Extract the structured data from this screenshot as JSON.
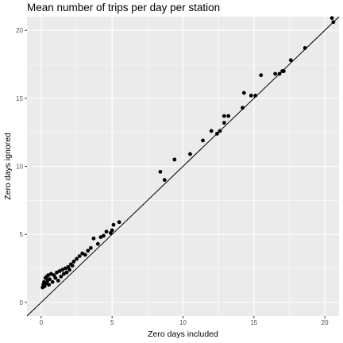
{
  "chart_data": {
    "type": "scatter",
    "title": "Mean number of trips per day per station",
    "xlabel": "Zero days included",
    "ylabel": "Zero days ignored",
    "xlim": [
      -1.0,
      21.0
    ],
    "ylim": [
      -1.0,
      21.0
    ],
    "x_ticks": [
      0,
      5,
      10,
      15,
      20
    ],
    "y_ticks": [
      0,
      5,
      10,
      15,
      20
    ],
    "grid": true,
    "reference_line": {
      "slope": 1,
      "intercept": 0
    },
    "colors": {
      "panel": "#EBEBEB",
      "grid": "#FFFFFF",
      "point": "#000000",
      "line": "#000000"
    },
    "points": [
      [
        0.1,
        1.1
      ],
      [
        0.15,
        1.3
      ],
      [
        0.2,
        1.5
      ],
      [
        0.25,
        1.2
      ],
      [
        0.3,
        1.8
      ],
      [
        0.35,
        1.4
      ],
      [
        0.4,
        1.9
      ],
      [
        0.45,
        1.6
      ],
      [
        0.5,
        2.0
      ],
      [
        0.55,
        1.3
      ],
      [
        0.6,
        1.7
      ],
      [
        0.7,
        2.1
      ],
      [
        0.8,
        1.5
      ],
      [
        0.9,
        2.0
      ],
      [
        1.0,
        1.8
      ],
      [
        1.1,
        2.2
      ],
      [
        1.2,
        1.6
      ],
      [
        1.3,
        2.3
      ],
      [
        1.4,
        1.9
      ],
      [
        1.5,
        2.4
      ],
      [
        1.6,
        2.1
      ],
      [
        1.7,
        2.5
      ],
      [
        1.8,
        2.2
      ],
      [
        1.9,
        2.6
      ],
      [
        2.0,
        2.4
      ],
      [
        2.1,
        2.8
      ],
      [
        2.2,
        2.7
      ],
      [
        2.3,
        3.0
      ],
      [
        2.5,
        3.2
      ],
      [
        2.7,
        3.4
      ],
      [
        2.9,
        3.6
      ],
      [
        3.1,
        3.5
      ],
      [
        3.3,
        3.8
      ],
      [
        3.5,
        4.0
      ],
      [
        3.7,
        4.7
      ],
      [
        4.0,
        4.3
      ],
      [
        4.2,
        4.8
      ],
      [
        4.4,
        4.9
      ],
      [
        4.6,
        5.2
      ],
      [
        4.9,
        5.1
      ],
      [
        5.0,
        5.3
      ],
      [
        5.1,
        5.7
      ],
      [
        5.5,
        5.9
      ],
      [
        8.4,
        9.6
      ],
      [
        8.7,
        9.0
      ],
      [
        9.4,
        10.5
      ],
      [
        10.5,
        10.9
      ],
      [
        11.4,
        11.9
      ],
      [
        12.0,
        12.6
      ],
      [
        12.4,
        12.4
      ],
      [
        12.6,
        12.6
      ],
      [
        12.9,
        13.2
      ],
      [
        12.9,
        13.7
      ],
      [
        13.2,
        13.7
      ],
      [
        14.2,
        14.3
      ],
      [
        14.3,
        15.4
      ],
      [
        14.8,
        15.2
      ],
      [
        15.1,
        15.2
      ],
      [
        15.5,
        16.7
      ],
      [
        16.5,
        16.8
      ],
      [
        16.8,
        16.8
      ],
      [
        17.0,
        17.0
      ],
      [
        17.1,
        17.0
      ],
      [
        17.6,
        17.8
      ],
      [
        18.6,
        18.7
      ],
      [
        20.5,
        20.9
      ],
      [
        20.6,
        20.6
      ]
    ]
  }
}
